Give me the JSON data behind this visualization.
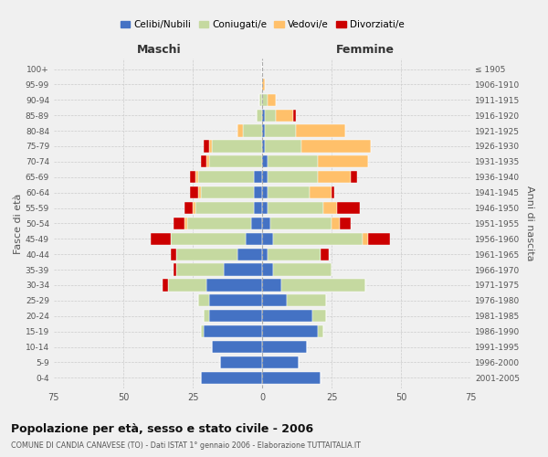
{
  "age_groups": [
    "100+",
    "95-99",
    "90-94",
    "85-89",
    "80-84",
    "75-79",
    "70-74",
    "65-69",
    "60-64",
    "55-59",
    "50-54",
    "45-49",
    "40-44",
    "35-39",
    "30-34",
    "25-29",
    "20-24",
    "15-19",
    "10-14",
    "5-9",
    "0-4"
  ],
  "birth_years": [
    "≤ 1905",
    "1906-1910",
    "1911-1915",
    "1916-1920",
    "1921-1925",
    "1926-1930",
    "1931-1935",
    "1936-1940",
    "1941-1945",
    "1946-1950",
    "1951-1955",
    "1956-1960",
    "1961-1965",
    "1966-1970",
    "1971-1975",
    "1976-1980",
    "1981-1985",
    "1986-1990",
    "1991-1995",
    "1996-2000",
    "2001-2005"
  ],
  "colors": {
    "celibi": "#4472c4",
    "coniugati": "#c5d9a0",
    "vedovi": "#ffc06a",
    "divorziati": "#cc0000"
  },
  "males": {
    "celibi": [
      0,
      0,
      0,
      0,
      0,
      0,
      0,
      3,
      3,
      3,
      4,
      6,
      9,
      14,
      20,
      19,
      19,
      21,
      18,
      15,
      22
    ],
    "coniugati": [
      0,
      0,
      1,
      2,
      7,
      18,
      19,
      20,
      19,
      21,
      23,
      27,
      22,
      17,
      14,
      4,
      2,
      1,
      0,
      0,
      0
    ],
    "vedovi": [
      0,
      0,
      0,
      0,
      2,
      1,
      1,
      1,
      1,
      1,
      1,
      0,
      0,
      0,
      0,
      0,
      0,
      0,
      0,
      0,
      0
    ],
    "divorziati": [
      0,
      0,
      0,
      0,
      0,
      2,
      2,
      2,
      3,
      3,
      4,
      7,
      2,
      1,
      2,
      0,
      0,
      0,
      0,
      0,
      0
    ]
  },
  "females": {
    "nubili": [
      0,
      0,
      0,
      1,
      1,
      1,
      2,
      2,
      2,
      2,
      3,
      4,
      2,
      4,
      7,
      9,
      18,
      20,
      16,
      13,
      21
    ],
    "coniugate": [
      0,
      0,
      2,
      4,
      11,
      13,
      18,
      18,
      15,
      20,
      22,
      32,
      19,
      21,
      30,
      14,
      5,
      2,
      0,
      0,
      0
    ],
    "vedove": [
      0,
      1,
      3,
      6,
      18,
      25,
      18,
      12,
      8,
      5,
      3,
      2,
      0,
      0,
      0,
      0,
      0,
      0,
      0,
      0,
      0
    ],
    "divorziate": [
      0,
      0,
      0,
      1,
      0,
      0,
      0,
      2,
      1,
      8,
      4,
      8,
      3,
      0,
      0,
      0,
      0,
      0,
      0,
      0,
      0
    ]
  },
  "xlim": 75,
  "title": "Popolazione per età, sesso e stato civile - 2006",
  "subtitle": "COMUNE DI CANDIA CANAVESE (TO) - Dati ISTAT 1° gennaio 2006 - Elaborazione TUTTAITALIA.IT",
  "xlabel_left": "Maschi",
  "xlabel_right": "Femmine",
  "ylabel_left": "Fasce di età",
  "ylabel_right": "Anni di nascita",
  "legend_labels": [
    "Celibi/Nubili",
    "Coniugati/e",
    "Vedovi/e",
    "Divorziati/e"
  ],
  "bg_color": "#f0f0f0",
  "grid_color": "#cccccc"
}
